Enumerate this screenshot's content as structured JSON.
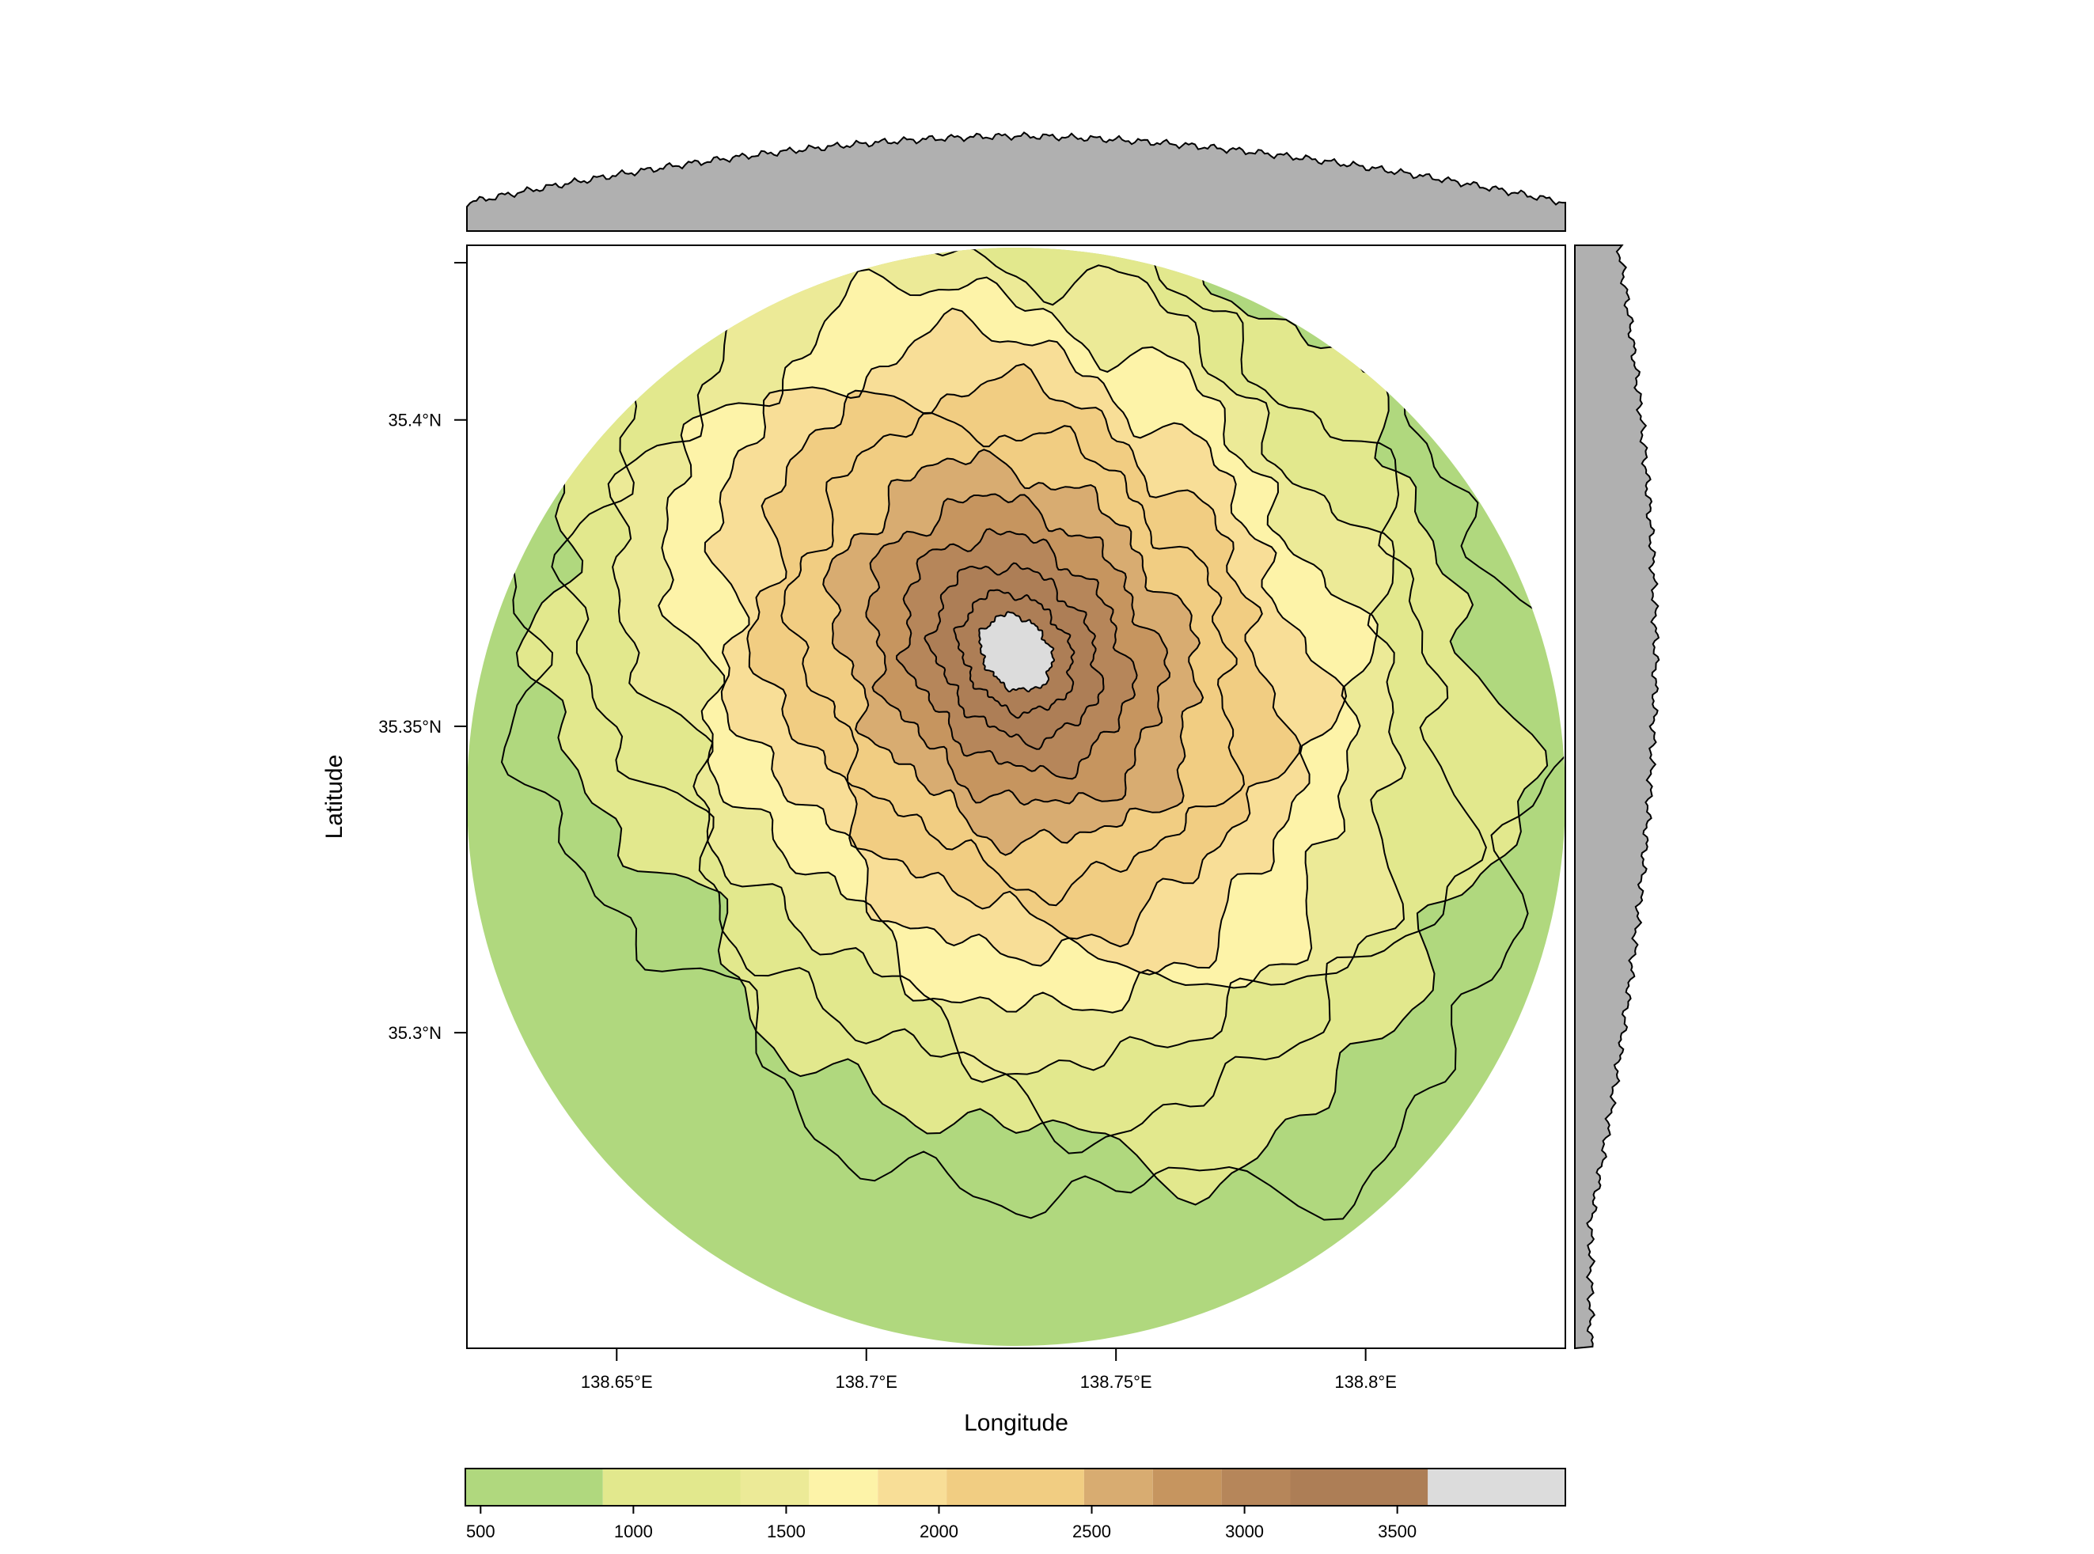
{
  "map": {
    "type": "contour-map",
    "x_axis": {
      "label": "Longitude",
      "range": [
        138.62,
        138.84
      ],
      "ticks": [
        {
          "value": 138.65,
          "label": "138.65°E"
        },
        {
          "value": 138.7,
          "label": "138.7°E"
        },
        {
          "value": 138.75,
          "label": "138.75°E"
        },
        {
          "value": 138.8,
          "label": "138.8°E"
        }
      ]
    },
    "y_axis": {
      "label": "Latitude",
      "range": [
        35.2485,
        35.4285
      ],
      "ticks": [
        {
          "value": 35.3,
          "label": "35.3°N"
        },
        {
          "value": 35.35,
          "label": "35.35°N"
        },
        {
          "value": 35.4,
          "label": "35.4°N"
        }
      ]
    },
    "summit": {
      "lon": 138.73,
      "lat": 35.362,
      "elevation": 3750
    },
    "data_extent": "circular",
    "elevation_bins": [
      {
        "min": 450,
        "max": 900,
        "color": "#b0d87e"
      },
      {
        "min": 900,
        "max": 1350,
        "color": "#e2e88d"
      },
      {
        "min": 1350,
        "max": 1575,
        "color": "#ecea97"
      },
      {
        "min": 1575,
        "max": 1800,
        "color": "#fdf3a8"
      },
      {
        "min": 1800,
        "max": 2025,
        "color": "#f8de97"
      },
      {
        "min": 2025,
        "max": 2475,
        "color": "#f1cd82"
      },
      {
        "min": 2475,
        "max": 2700,
        "color": "#d8ac71"
      },
      {
        "min": 2700,
        "max": 2925,
        "color": "#c6955f"
      },
      {
        "min": 2925,
        "max": 3150,
        "color": "#b6865a"
      },
      {
        "min": 3150,
        "max": 3600,
        "color": "#ad7e56"
      },
      {
        "min": 3600,
        "max": 4050,
        "color": "#dcdcdc"
      }
    ],
    "marginal_color": "#b0b0b0",
    "colorkey": {
      "range": [
        450,
        4050
      ],
      "ticks": [
        500,
        1000,
        1500,
        2000,
        2500,
        3000,
        3500
      ]
    }
  }
}
